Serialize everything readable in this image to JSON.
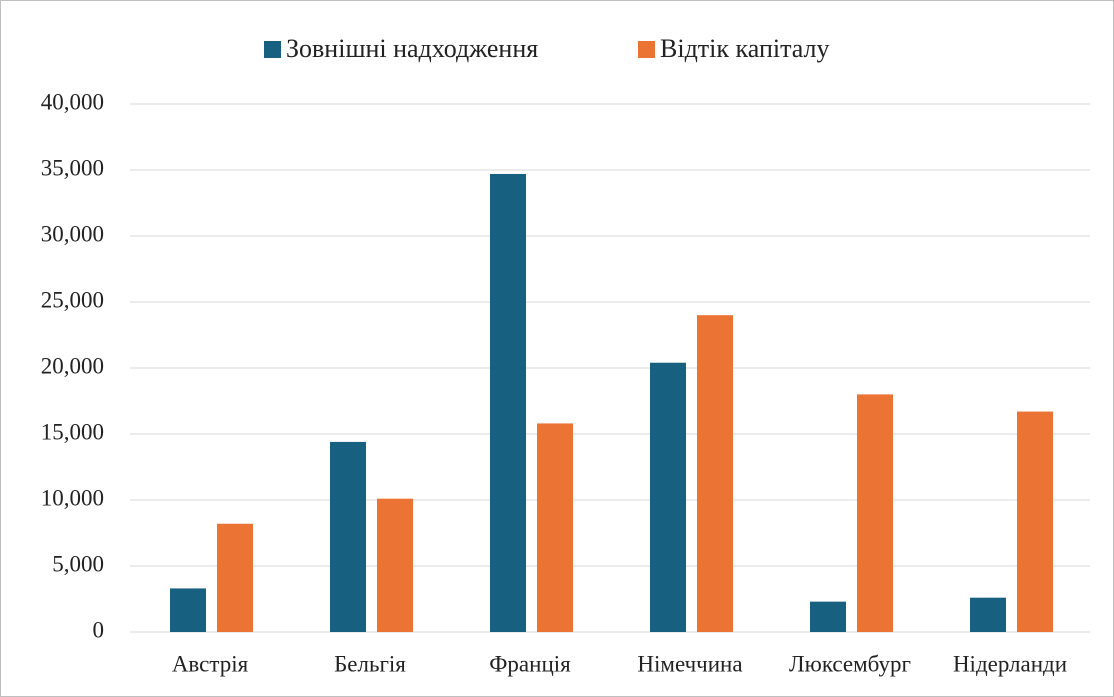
{
  "chart_data": {
    "type": "bar",
    "categories": [
      "Австрія",
      "Бельгія",
      "Франція",
      "Німеччина",
      "Люксембург",
      "Нідерланди"
    ],
    "series": [
      {
        "name": "Зовнішні надходження",
        "color": "#17607f",
        "values": [
          3300,
          14400,
          34700,
          20400,
          2300,
          2600
        ]
      },
      {
        "name": "Відтік капіталу",
        "color": "#eb7334",
        "values": [
          8200,
          10100,
          15800,
          24000,
          18000,
          16700
        ]
      }
    ],
    "ylim": [
      0,
      40000
    ],
    "yticks": [
      0,
      {
        "value": 5000,
        "label": "5,000"
      },
      {
        "value": 10000,
        "label": "10,000"
      },
      {
        "value": 15000,
        "label": "15,000"
      },
      {
        "value": 20000,
        "label": "20,000"
      },
      {
        "value": 25000,
        "label": "25,000"
      },
      {
        "value": 30000,
        "label": "30,000"
      },
      {
        "value": 35000,
        "label": "35,000"
      },
      {
        "value": 40000,
        "label": "40,000"
      }
    ],
    "grid": true,
    "legend": "top"
  }
}
